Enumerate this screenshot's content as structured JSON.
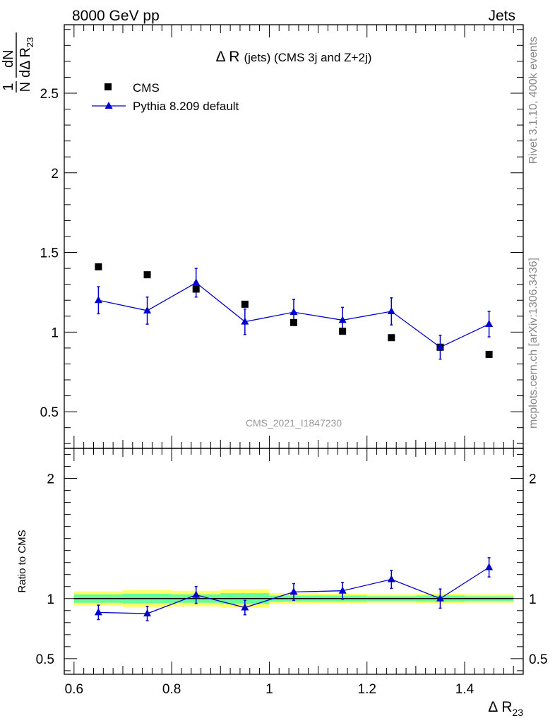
{
  "header": {
    "left": "8000 GeV pp",
    "right": "Jets"
  },
  "side_labels": {
    "rivet": "Rivet 3.1.10,  400k events",
    "mcplots": "mcplots.cern.ch [arXiv:1306.3436]"
  },
  "watermark": "CMS_2021_I1847230",
  "main_title": {
    "symbol": "Δ R",
    "rest": "(jets) (CMS 3j and Z+2j)"
  },
  "legend": {
    "cms": "CMS",
    "pythia": "Pythia 8.209 default"
  },
  "axes": {
    "ylabel_top": {
      "one": "1",
      "N": "N",
      "dN": "dN",
      "d": "d",
      "delta": "Δ",
      "R": "R",
      "sub": "23"
    },
    "ylabel_ratio": "Ratio to CMS",
    "xlabel": {
      "delta": "Δ",
      "R": "R",
      "sub": "23"
    }
  },
  "colors": {
    "data": "#000000",
    "mc": "#0000cc",
    "band_outer": "#ffff66",
    "band_inner": "#66ff99"
  },
  "chart_data": [
    {
      "type": "scatter",
      "panel": "main",
      "xlim": [
        0.58,
        1.52
      ],
      "ylim": [
        0.27,
        2.93
      ],
      "yticks": [
        0.5,
        1,
        1.5,
        2,
        2.5
      ],
      "ytick_labels": [
        "0.5",
        "1",
        "1.5",
        "2",
        "2.5"
      ],
      "series": [
        {
          "name": "CMS",
          "marker": "square",
          "x": [
            0.65,
            0.75,
            0.85,
            0.95,
            1.05,
            1.15,
            1.25,
            1.35,
            1.45
          ],
          "y": [
            1.41,
            1.36,
            1.27,
            1.175,
            1.06,
            1.005,
            0.965,
            0.905,
            0.86
          ]
        },
        {
          "name": "Pythia 8.209 default",
          "marker": "triangle",
          "x": [
            0.65,
            0.75,
            0.85,
            0.95,
            1.05,
            1.15,
            1.25,
            1.35,
            1.45
          ],
          "y": [
            1.2,
            1.135,
            1.31,
            1.065,
            1.125,
            1.075,
            1.13,
            0.905,
            1.05
          ],
          "yerr": [
            0.085,
            0.085,
            0.09,
            0.08,
            0.08,
            0.08,
            0.085,
            0.075,
            0.08
          ]
        }
      ]
    },
    {
      "type": "line",
      "panel": "ratio",
      "xlim": [
        0.58,
        1.52
      ],
      "ylim": [
        0.37,
        2.25
      ],
      "xticks": [
        0.6,
        0.8,
        1.0,
        1.2,
        1.4
      ],
      "xtick_labels": [
        "0.6",
        "0.8",
        "1",
        "1.2",
        "1.4"
      ],
      "yticks": [
        0.5,
        1,
        2
      ],
      "ytick_labels": [
        "0.5",
        "1",
        "2"
      ],
      "bands": {
        "x_edges": [
          0.6,
          0.7,
          0.8,
          0.9,
          1.0,
          1.1,
          1.2,
          1.3,
          1.4,
          1.5
        ],
        "outer": [
          0.06,
          0.07,
          0.065,
          0.075,
          0.045,
          0.04,
          0.035,
          0.04,
          0.035
        ],
        "inner": [
          0.035,
          0.04,
          0.035,
          0.045,
          0.025,
          0.025,
          0.02,
          0.025,
          0.02
        ]
      },
      "series": [
        {
          "name": "Pythia 8.209 default",
          "x": [
            0.65,
            0.75,
            0.85,
            0.95,
            1.05,
            1.15,
            1.25,
            1.35,
            1.45
          ],
          "y": [
            0.885,
            0.875,
            1.03,
            0.925,
            1.055,
            1.065,
            1.16,
            1.0,
            1.26
          ],
          "yerr": [
            0.06,
            0.06,
            0.07,
            0.06,
            0.07,
            0.07,
            0.075,
            0.08,
            0.08
          ]
        }
      ]
    }
  ]
}
